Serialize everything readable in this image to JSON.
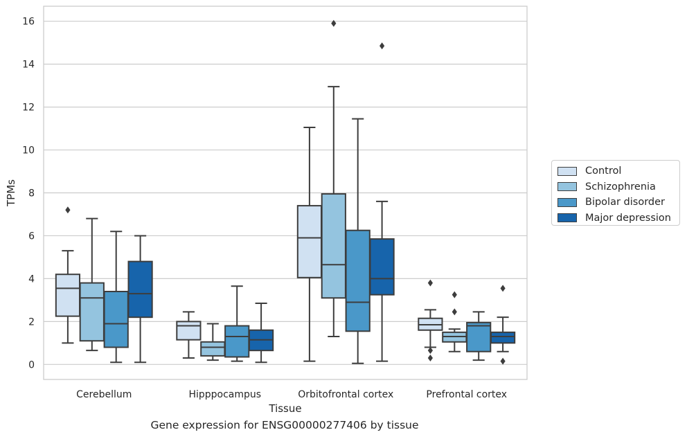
{
  "caption": "Gene expression for ENSG00000277406 by tissue",
  "chart_data": {
    "type": "box",
    "title": "",
    "xlabel": "Tissue",
    "ylabel": "TPMs",
    "ylim": [
      -0.7,
      16.7
    ],
    "yticks": [
      "0",
      "2",
      "4",
      "6",
      "8",
      "10",
      "12",
      "14",
      "16"
    ],
    "grid": "horizontal",
    "legend_position": "right",
    "categories": [
      "Cerebellum",
      "Hipppocampus",
      "Orbitofrontal cortex",
      "Prefrontal cortex"
    ],
    "series": [
      {
        "name": "Control",
        "color": "#d0e1f2",
        "boxes": [
          {
            "whisker_low": 1.0,
            "q1": 2.25,
            "median": 3.55,
            "q3": 4.2,
            "whisker_high": 5.3,
            "outliers": [
              7.2
            ]
          },
          {
            "whisker_low": 0.3,
            "q1": 1.15,
            "median": 1.8,
            "q3": 2.0,
            "whisker_high": 2.45,
            "outliers": []
          },
          {
            "whisker_low": 0.15,
            "q1": 4.05,
            "median": 5.9,
            "q3": 7.4,
            "whisker_high": 11.05,
            "outliers": []
          },
          {
            "whisker_low": 0.8,
            "q1": 1.6,
            "median": 1.85,
            "q3": 2.15,
            "whisker_high": 2.55,
            "outliers": [
              3.8,
              0.65,
              0.3
            ]
          }
        ]
      },
      {
        "name": "Schizophrenia",
        "color": "#94c4df",
        "boxes": [
          {
            "whisker_low": 0.65,
            "q1": 1.1,
            "median": 3.1,
            "q3": 3.8,
            "whisker_high": 6.8,
            "outliers": []
          },
          {
            "whisker_low": 0.2,
            "q1": 0.4,
            "median": 0.8,
            "q3": 1.05,
            "whisker_high": 1.9,
            "outliers": []
          },
          {
            "whisker_low": 1.3,
            "q1": 3.1,
            "median": 4.65,
            "q3": 7.95,
            "whisker_high": 12.95,
            "outliers": [
              15.9
            ]
          },
          {
            "whisker_low": 0.6,
            "q1": 1.05,
            "median": 1.3,
            "q3": 1.5,
            "whisker_high": 1.65,
            "outliers": [
              3.25,
              2.45
            ]
          }
        ]
      },
      {
        "name": "Bipolar disorder",
        "color": "#4a98c9",
        "boxes": [
          {
            "whisker_low": 0.1,
            "q1": 0.8,
            "median": 1.9,
            "q3": 3.4,
            "whisker_high": 6.2,
            "outliers": []
          },
          {
            "whisker_low": 0.15,
            "q1": 0.35,
            "median": 1.3,
            "q3": 1.8,
            "whisker_high": 3.65,
            "outliers": []
          },
          {
            "whisker_low": 0.05,
            "q1": 1.55,
            "median": 2.9,
            "q3": 6.25,
            "whisker_high": 11.45,
            "outliers": []
          },
          {
            "whisker_low": 0.2,
            "q1": 0.6,
            "median": 1.8,
            "q3": 1.95,
            "whisker_high": 2.45,
            "outliers": []
          }
        ]
      },
      {
        "name": "Major depression",
        "color": "#1764ab",
        "boxes": [
          {
            "whisker_low": 0.1,
            "q1": 2.2,
            "median": 3.3,
            "q3": 4.8,
            "whisker_high": 6.0,
            "outliers": []
          },
          {
            "whisker_low": 0.1,
            "q1": 0.65,
            "median": 1.15,
            "q3": 1.6,
            "whisker_high": 2.85,
            "outliers": []
          },
          {
            "whisker_low": 0.15,
            "q1": 3.25,
            "median": 4.0,
            "q3": 5.85,
            "whisker_high": 7.6,
            "outliers": [
              14.85
            ]
          },
          {
            "whisker_low": 0.6,
            "q1": 1.0,
            "median": 1.3,
            "q3": 1.5,
            "whisker_high": 2.2,
            "outliers": [
              3.55,
              0.15
            ]
          }
        ]
      }
    ]
  }
}
